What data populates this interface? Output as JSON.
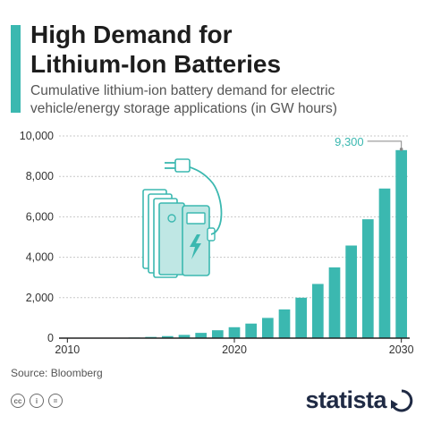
{
  "header": {
    "title_line1": "High Demand for",
    "title_line2": "Lithium-Ion Batteries",
    "subtitle_line1": "Cumulative lithium-ion battery demand for electric",
    "subtitle_line2": "vehicle/energy storage applications (in GW hours)"
  },
  "chart_data": {
    "type": "bar",
    "title": "High Demand for Lithium-Ion Batteries",
    "subtitle": "Cumulative lithium-ion battery demand for electric vehicle/energy storage applications (in GW hours)",
    "categories": [
      2010,
      2011,
      2012,
      2013,
      2014,
      2015,
      2016,
      2017,
      2018,
      2019,
      2020,
      2021,
      2022,
      2023,
      2024,
      2025,
      2026,
      2027,
      2028,
      2029,
      2030
    ],
    "values": [
      0,
      5,
      10,
      15,
      30,
      60,
      100,
      160,
      260,
      390,
      540,
      720,
      1000,
      1420,
      2000,
      2680,
      3500,
      4580,
      5880,
      7400,
      9300
    ],
    "ylim": [
      0,
      10000
    ],
    "yticks": [
      0,
      2000,
      4000,
      6000,
      8000,
      10000
    ],
    "ytick_labels": [
      "0",
      "2,000",
      "4,000",
      "6,000",
      "8,000",
      "10,000"
    ],
    "xticks": [
      2010,
      2020,
      2030
    ],
    "annotation": {
      "year": 2030,
      "label": "9,300"
    },
    "grid": true,
    "bar_color": "#3bb8b0"
  },
  "footer": {
    "source": "Source: Bloomberg",
    "brand": "statista",
    "license_icons": [
      "cc",
      "i",
      "="
    ]
  }
}
